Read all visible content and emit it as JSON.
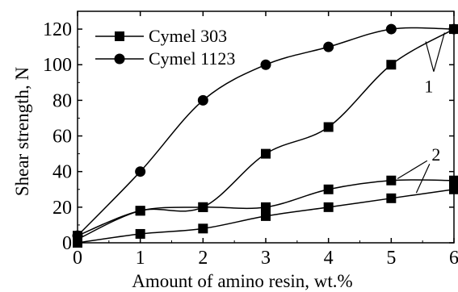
{
  "chart_data": {
    "type": "line",
    "xlabel": "Amount of amino resin, wt.%",
    "ylabel": "Shear strength, N",
    "xlim": [
      0,
      6
    ],
    "ylim": [
      0,
      130
    ],
    "x_ticks": [
      0,
      1,
      2,
      3,
      4,
      5,
      6
    ],
    "y_ticks": [
      0,
      20,
      40,
      60,
      80,
      100,
      120
    ],
    "grid": false,
    "legend_position": "top-left",
    "series": [
      {
        "name": "Cymel 303",
        "marker": "square",
        "x": [
          0,
          1,
          2,
          3,
          4,
          5,
          6
        ],
        "y": [
          4,
          18,
          20,
          20,
          30,
          35,
          35
        ]
      },
      {
        "name": "Cymel 1123",
        "marker": "circle",
        "x": [
          0,
          1,
          2,
          3,
          4,
          5,
          6
        ],
        "y": [
          4,
          40,
          80,
          100,
          110,
          120,
          120
        ]
      },
      {
        "name": "",
        "marker": "square",
        "x": [
          0,
          1,
          2,
          3,
          4,
          5,
          6
        ],
        "y": [
          0,
          5,
          8,
          15,
          20,
          25,
          30
        ]
      },
      {
        "name": "",
        "marker": "square",
        "x": [
          0,
          1,
          2,
          3,
          4,
          5,
          6
        ],
        "y": [
          2,
          18,
          20,
          50,
          65,
          100,
          120
        ]
      }
    ],
    "annotations": [
      {
        "text": "1",
        "x": 5.6,
        "y": 88
      },
      {
        "text": "2",
        "x": 5.65,
        "y": 47
      }
    ]
  }
}
